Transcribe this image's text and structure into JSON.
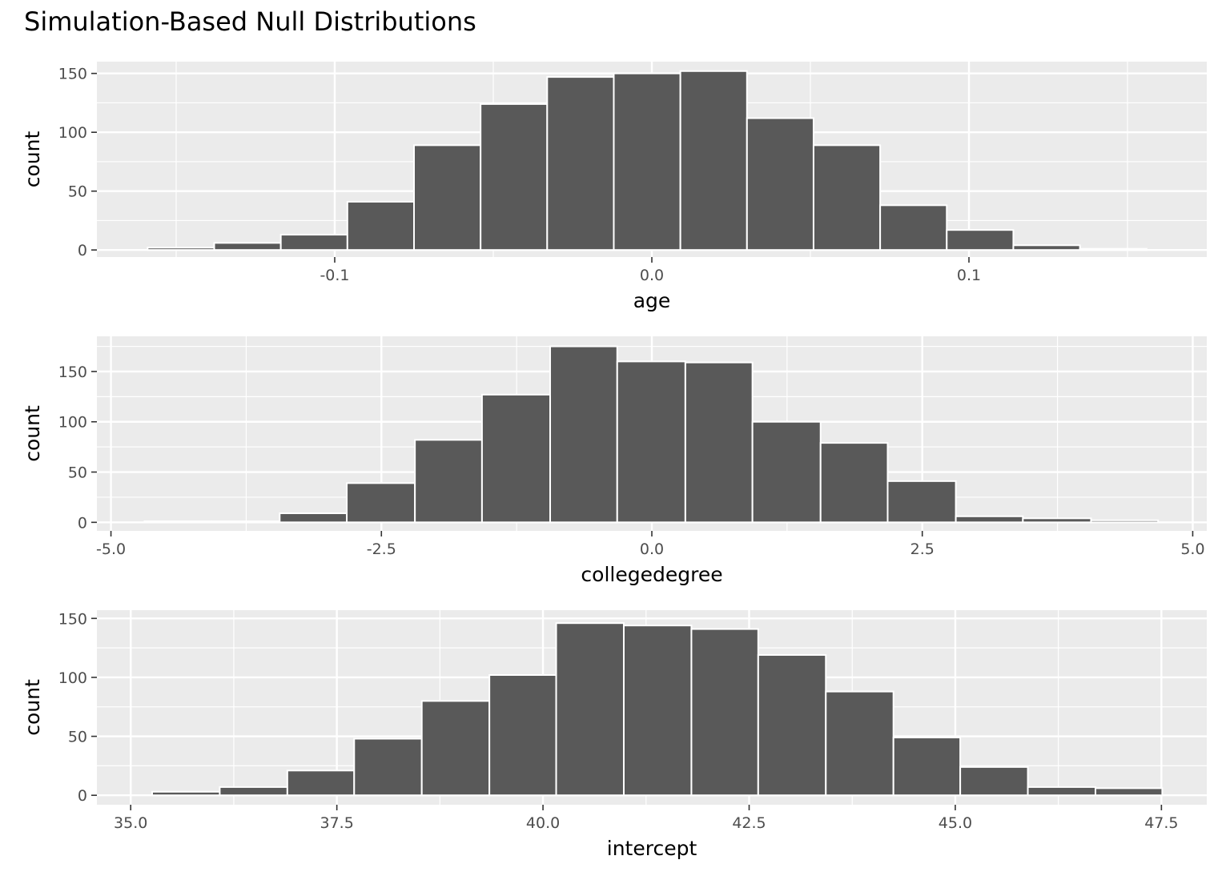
{
  "title": "Simulation-Based Null Distributions",
  "colors": {
    "panel_background": "#ebebeb",
    "grid_line": "#ffffff",
    "bar_fill": "#595959",
    "bar_outline": "#ffffff",
    "tick_text": "#4d4d4d",
    "axis_text": "#000000"
  },
  "chart_data": [
    {
      "type": "bar",
      "xlabel": "age",
      "ylabel": "count",
      "xlim": [
        -0.175,
        0.175
      ],
      "ylim": [
        -6,
        160
      ],
      "xticks": [
        -0.1,
        0.0,
        0.1
      ],
      "xtick_labels": [
        "-0.1",
        "0.0",
        "0.1"
      ],
      "yticks": [
        0,
        50,
        100,
        150
      ],
      "ytick_labels": [
        "0",
        "50",
        "100",
        "150"
      ],
      "bin_edges": [
        -0.159,
        -0.138,
        -0.117,
        -0.096,
        -0.075,
        -0.054,
        -0.033,
        -0.012,
        0.009,
        0.03,
        0.051,
        0.072,
        0.093,
        0.114,
        0.135,
        0.156
      ],
      "counts": [
        2,
        6,
        13,
        41,
        89,
        124,
        147,
        150,
        152,
        112,
        89,
        38,
        17,
        4,
        1
      ],
      "grid": true
    },
    {
      "type": "bar",
      "xlabel": "collegedegree",
      "ylabel": "count",
      "xlim": [
        -5.13,
        5.13
      ],
      "ylim": [
        -8.5,
        185
      ],
      "xticks": [
        -5.0,
        -2.5,
        0.0,
        2.5,
        5.0
      ],
      "xtick_labels": [
        "-5.0",
        "-2.5",
        "0.0",
        "2.5",
        "5.0"
      ],
      "yticks": [
        0,
        50,
        100,
        150
      ],
      "ytick_labels": [
        "0",
        "50",
        "100",
        "150"
      ],
      "bin_edges": [
        -4.69,
        -4.07,
        -3.44,
        -2.82,
        -2.19,
        -1.57,
        -0.94,
        -0.32,
        0.31,
        0.93,
        1.56,
        2.18,
        2.81,
        3.43,
        4.06,
        4.68
      ],
      "counts": [
        1,
        1,
        9,
        39,
        82,
        127,
        175,
        160,
        159,
        100,
        79,
        41,
        6,
        4,
        2
      ],
      "grid": true
    },
    {
      "type": "bar",
      "xlabel": "intercept",
      "ylabel": "count",
      "xlim": [
        34.59,
        48.05
      ],
      "ylim": [
        -8,
        157
      ],
      "xticks": [
        35.0,
        37.5,
        40.0,
        42.5,
        45.0,
        47.5
      ],
      "xtick_labels": [
        "35.0",
        "37.5",
        "40.0",
        "42.5",
        "45.0",
        "47.5"
      ],
      "yticks": [
        0,
        50,
        100,
        150
      ],
      "ytick_labels": [
        "0",
        "50",
        "100",
        "150"
      ],
      "bin_edges": [
        35.26,
        36.08,
        36.9,
        37.71,
        38.53,
        39.35,
        40.16,
        40.98,
        41.8,
        42.61,
        43.43,
        44.25,
        45.06,
        45.88,
        46.7,
        47.51
      ],
      "counts": [
        3,
        7,
        21,
        48,
        80,
        102,
        146,
        144,
        141,
        119,
        88,
        49,
        24,
        7,
        6
      ],
      "grid": true
    }
  ]
}
